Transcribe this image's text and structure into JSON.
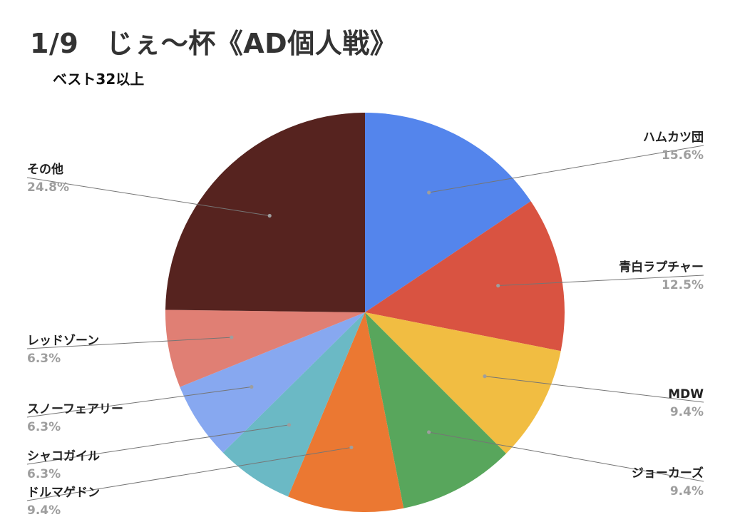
{
  "chart_data": {
    "type": "pie",
    "title": "1/9　じぇ〜杯《AD個人戦》",
    "subtitle": "ベスト32以上",
    "start_angle_deg": 0,
    "direction": "clockwise",
    "slices": [
      {
        "label": "ハムカツ団",
        "value": 15.6,
        "value_label": "15.6%",
        "color": "#5485ec"
      },
      {
        "label": "青白ラプチャー",
        "value": 12.5,
        "value_label": "12.5%",
        "color": "#d95341"
      },
      {
        "label": "MDW",
        "value": 9.4,
        "value_label": "9.4%",
        "color": "#f1bd42"
      },
      {
        "label": "ジョーカーズ",
        "value": 9.4,
        "value_label": "9.4%",
        "color": "#58a65c"
      },
      {
        "label": "ドルマゲドン",
        "value": 9.4,
        "value_label": "9.4%",
        "color": "#eb7832"
      },
      {
        "label": "シャコガイル",
        "value": 6.3,
        "value_label": "6.3%",
        "color": "#6bb9c5"
      },
      {
        "label": "スノーフェアリー",
        "value": 6.3,
        "value_label": "6.3%",
        "color": "#87a8f0"
      },
      {
        "label": "レッドゾーン",
        "value": 6.3,
        "value_label": "6.3%",
        "color": "#e07f74"
      },
      {
        "label": "その他",
        "value": 24.8,
        "value_label": "24.8%",
        "color": "#56231f"
      }
    ],
    "legend": "none",
    "labels": "outside-with-leader-lines"
  }
}
